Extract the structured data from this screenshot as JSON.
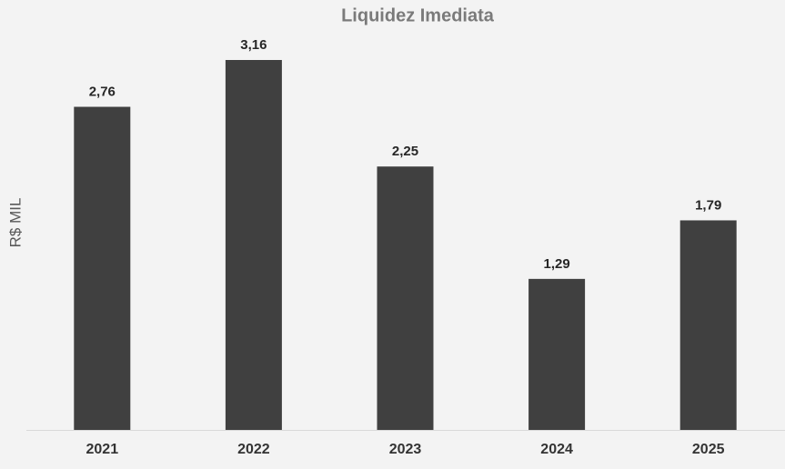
{
  "chart_data": {
    "type": "bar",
    "title": "Liquidez Imediata",
    "y_label": "R$ MIL",
    "categories": [
      "2021",
      "2022",
      "2023",
      "2024",
      "2025"
    ],
    "values": [
      2.76,
      3.16,
      2.25,
      1.29,
      1.79
    ],
    "value_labels": [
      "2,76",
      "3,16",
      "2,25",
      "1,29",
      "1,79"
    ],
    "color": "#404040"
  }
}
